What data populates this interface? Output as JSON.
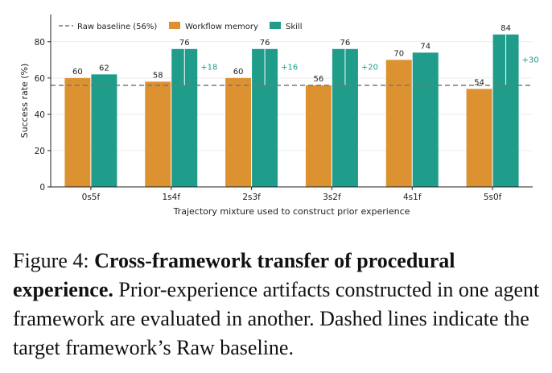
{
  "chart_data": {
    "type": "bar",
    "categories": [
      "0s5f",
      "1s4f",
      "2s3f",
      "3s2f",
      "4s1f",
      "5s0f"
    ],
    "series": [
      {
        "name": "Workflow memory",
        "color": "#dd9231",
        "values": [
          60,
          58,
          60,
          56,
          70,
          54
        ]
      },
      {
        "name": "Skill",
        "color": "#209c8b",
        "values": [
          62,
          76,
          76,
          76,
          74,
          84
        ]
      }
    ],
    "bar_labels": {
      "workflow": [
        "60",
        "58",
        "60",
        "56",
        "70",
        "54"
      ],
      "skill": [
        "62",
        "76",
        "76",
        "76",
        "74",
        "84"
      ]
    },
    "deltas": [
      {
        "index": 1,
        "label": "+18"
      },
      {
        "index": 2,
        "label": "+16"
      },
      {
        "index": 3,
        "label": "+20"
      },
      {
        "index": 5,
        "label": "+30"
      }
    ],
    "baseline": {
      "name": "Raw baseline (56%)",
      "value": 56,
      "color": "#777777"
    },
    "xlabel": "Trajectory mixture used to construct prior experience",
    "ylabel": "Success rate (%)",
    "ylim": [
      0,
      95
    ],
    "yticks": [
      0,
      20,
      40,
      60,
      80
    ],
    "ytick_labels": [
      "0",
      "20",
      "40",
      "60",
      "80"
    ],
    "grid": "horizontal",
    "legend_placement": "top-left"
  },
  "caption": {
    "prefix": "Figure 4:",
    "bold": "Cross-framework transfer of procedural experience.",
    "body": "Prior-experience artifacts constructed in one agent framework are evaluated in another. Dashed lines indicate the target framework’s Raw baseline."
  }
}
